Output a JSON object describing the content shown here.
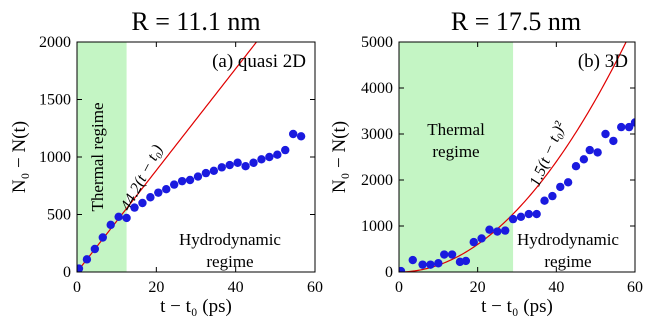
{
  "chart_data": [
    {
      "type": "scatter",
      "title": "R = 11.1 nm",
      "panel_label": "(a) quasi 2D",
      "xlabel": "t − t₀ (ps)",
      "ylabel": "N₀ − N(t)",
      "xlim": [
        0,
        60
      ],
      "ylim": [
        0,
        2000
      ],
      "xticks": [
        0,
        20,
        40,
        60
      ],
      "yticks": [
        0,
        500,
        1000,
        1500,
        2000
      ],
      "grid": false,
      "shaded_region": {
        "from": 0,
        "to": 12.5,
        "color": "#c4f5c4",
        "label": "Thermal regime"
      },
      "region_annotation": {
        "lines": [
          "Hydrodynamic",
          "regime"
        ]
      },
      "fit_curve": {
        "label": "44.2(t − t₀)",
        "formula": "44.2*x",
        "color": "#e00000"
      },
      "series": [
        {
          "color": "#1a1adf",
          "x": [
            0.5,
            2.5,
            4.5,
            6.5,
            8.5,
            10.5,
            12.5,
            14.5,
            16.5,
            18.5,
            20.5,
            22.5,
            24.5,
            26.5,
            28.5,
            30.5,
            32.5,
            34.5,
            36.5,
            38.5,
            40.5,
            42.5,
            44.5,
            46.5,
            48.5,
            50.5,
            52.5,
            54.5,
            56.5
          ],
          "y": [
            30,
            110,
            200,
            300,
            410,
            480,
            470,
            560,
            600,
            650,
            690,
            720,
            760,
            790,
            800,
            830,
            860,
            880,
            910,
            930,
            950,
            920,
            950,
            980,
            1000,
            1020,
            1060,
            1200,
            1180
          ]
        }
      ]
    },
    {
      "type": "scatter",
      "title": "R = 17.5 nm",
      "panel_label": "(b) 3D",
      "xlabel": "t − t₀ (ps)",
      "ylabel": "N₀ − N(t)",
      "xlim": [
        0,
        60
      ],
      "ylim": [
        0,
        5000
      ],
      "xticks": [
        0,
        20,
        40,
        60
      ],
      "yticks": [
        0,
        1000,
        2000,
        3000,
        4000,
        5000
      ],
      "grid": false,
      "shaded_region": {
        "from": 0,
        "to": 29,
        "color": "#c4f5c4",
        "label": "Thermal regime"
      },
      "region_annotation": {
        "lines": [
          "Hydrodynamic",
          "regime"
        ]
      },
      "fit_curve": {
        "label": "1.5(t − t₀)²",
        "formula": "1.5*x^2",
        "color": "#e00000"
      },
      "series": [
        {
          "color": "#1a1adf",
          "x": [
            0.5,
            3.5,
            6,
            8,
            10,
            11.5,
            13.5,
            15.5,
            17,
            19,
            21,
            23,
            25,
            27,
            29,
            31,
            33,
            35,
            37,
            39,
            41,
            43,
            45,
            47,
            48.5,
            50.5,
            52.5,
            54.5,
            56.5,
            58.5,
            60
          ],
          "y": [
            20,
            260,
            160,
            160,
            190,
            380,
            380,
            220,
            240,
            650,
            730,
            920,
            880,
            900,
            1150,
            1200,
            1260,
            1260,
            1550,
            1650,
            1850,
            1950,
            2300,
            2450,
            2650,
            2600,
            3000,
            2850,
            3150,
            3150,
            3250
          ]
        }
      ]
    }
  ]
}
